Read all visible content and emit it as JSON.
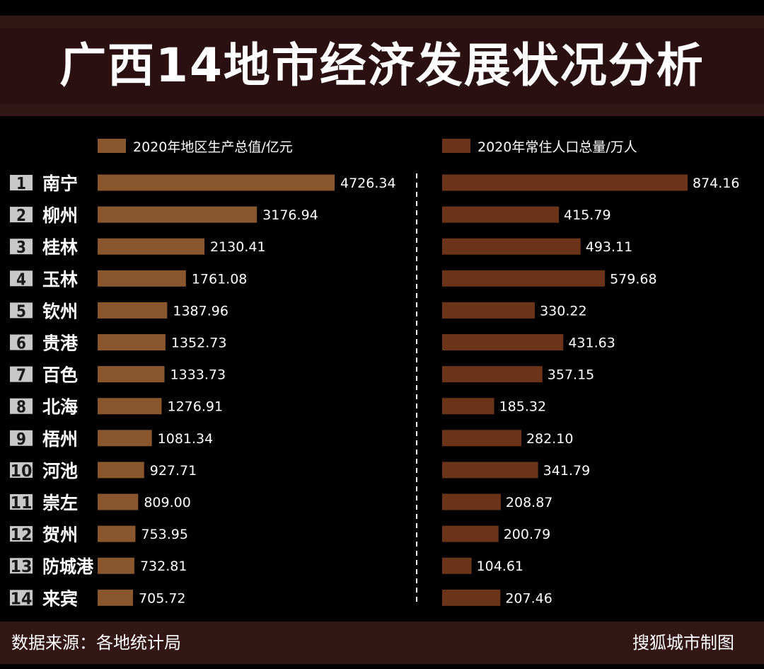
{
  "title": "广西14地市经济发展状况分析",
  "source": "数据来源：各地统计局",
  "credit": "搜狐城市制图",
  "colors": {
    "background": "#000000",
    "band": "#331616",
    "gdp_bar": "#8a562d",
    "pop_bar": "#6b3419",
    "rank_badge": "#c8c8c8",
    "rank_text": "#1a1a1a"
  },
  "chart_data": {
    "type": "bar",
    "orientation": "horizontal",
    "categories": [
      "南宁",
      "柳州",
      "桂林",
      "玉林",
      "钦州",
      "贵港",
      "百色",
      "北海",
      "梧州",
      "河池",
      "崇左",
      "贺州",
      "防城港",
      "来宾"
    ],
    "ranks": [
      "1",
      "2",
      "3",
      "4",
      "5",
      "6",
      "7",
      "8",
      "9",
      "10",
      "11",
      "12",
      "13",
      "14"
    ],
    "series": [
      {
        "name": "2020年地区生产总值/亿元",
        "values": [
          4726.34,
          3176.94,
          2130.41,
          1761.08,
          1387.96,
          1352.73,
          1333.73,
          1276.91,
          1081.34,
          927.71,
          809.0,
          753.95,
          732.81,
          705.72
        ],
        "labels": [
          "4726.34",
          "3176.94",
          "2130.41",
          "1761.08",
          "1387.96",
          "1352.73",
          "1333.73",
          "1276.91",
          "1081.34",
          "927.71",
          "809.00",
          "753.95",
          "732.81",
          "705.72"
        ],
        "xlim": [
          0,
          4726.34
        ]
      },
      {
        "name": "2020年常住人口总量/万人",
        "values": [
          874.16,
          415.79,
          493.11,
          579.68,
          330.22,
          431.63,
          357.15,
          185.32,
          282.1,
          341.79,
          208.87,
          200.79,
          104.61,
          207.46
        ],
        "labels": [
          "874.16",
          "415.79",
          "493.11",
          "579.68",
          "330.22",
          "431.63",
          "357.15",
          "185.32",
          "282.10",
          "341.79",
          "208.87",
          "200.79",
          "104.61",
          "207.46"
        ],
        "xlim": [
          0,
          874.16
        ]
      }
    ]
  }
}
